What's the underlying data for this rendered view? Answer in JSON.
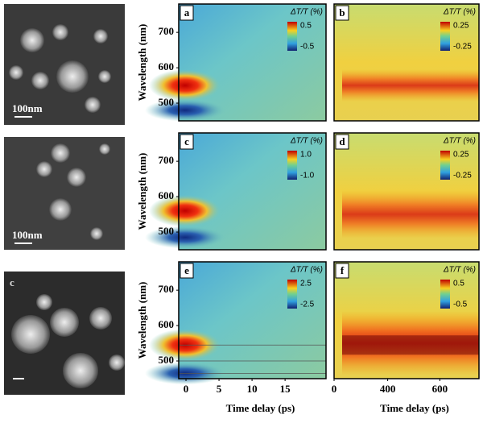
{
  "micrographs": [
    {
      "scale_bar": "100nm"
    },
    {
      "scale_bar": "100nm"
    },
    {
      "label": "c"
    }
  ],
  "maps": {
    "y_label": "Wavelength (nm)",
    "yticks": [
      700,
      600,
      500
    ],
    "ylim": [
      450,
      780
    ],
    "colorbar_title": "ΔT/T (%)",
    "left": {
      "x_label": "Time delay (ps)",
      "xticks": [
        0,
        5,
        10,
        15
      ],
      "xlim": [
        -1.1,
        21.2
      ]
    },
    "right": {
      "x_label": "Time delay (ps)",
      "xticks": [
        0,
        400,
        600
      ]
    },
    "panels": [
      {
        "label": "a",
        "colorbar": [
          0.5,
          -0.5
        ]
      },
      {
        "label": "b",
        "colorbar": [
          0.25,
          -0.25
        ]
      },
      {
        "label": "c",
        "colorbar": [
          {
            "value": 1,
            "label": "1.0"
          },
          {
            "value": -1,
            "label": "-1.0"
          }
        ]
      },
      {
        "label": "d",
        "colorbar": [
          0.25,
          -0.25
        ]
      },
      {
        "label": "e",
        "colorbar": [
          2.5,
          -2.5
        ]
      },
      {
        "label": "f",
        "colorbar": [
          0.5,
          -0.5
        ]
      }
    ]
  }
}
